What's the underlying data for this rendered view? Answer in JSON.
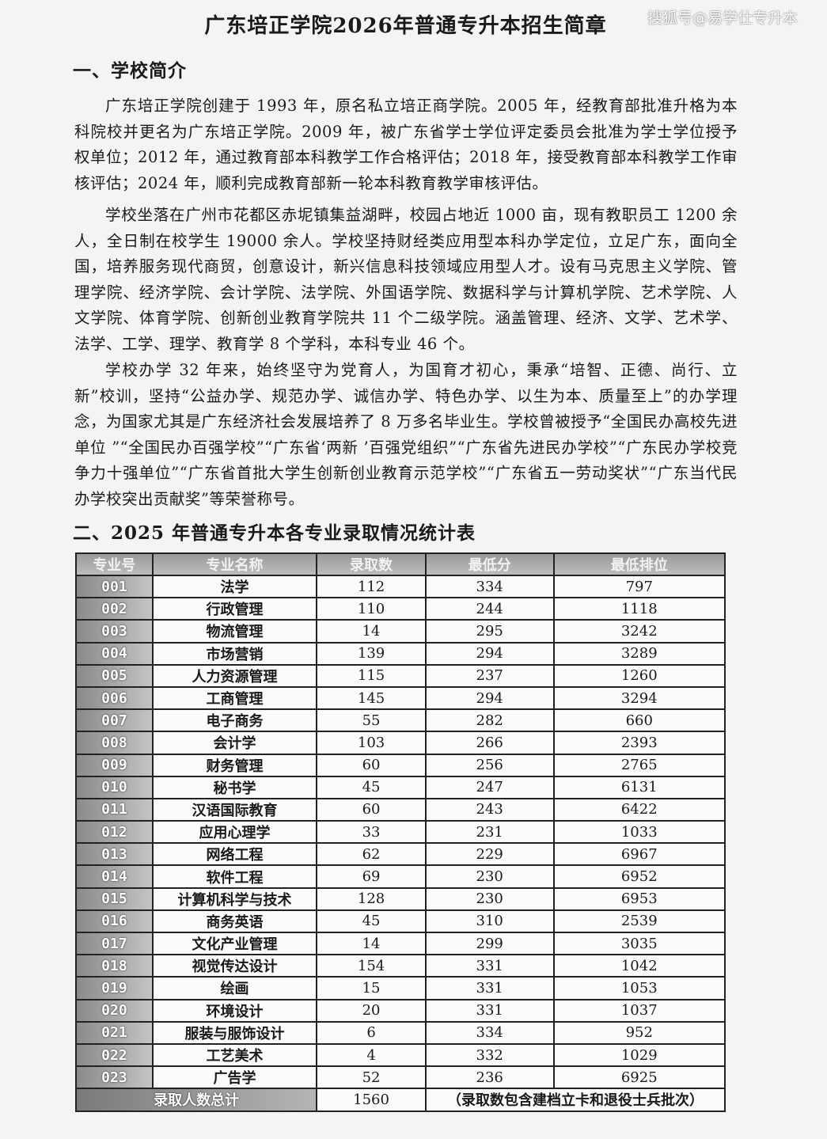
{
  "title": "广东培正学院2026年普通专升本招生简章",
  "watermark": "搜狐号@易学仕专升本",
  "section1": {
    "heading": "一、学校简介",
    "paragraphs": [
      "广东培正学院创建于 1993 年，原名私立培正商学院。2005 年，经教育部批准升格为本科院校并更名为广东培正学院。2009 年，被广东省学士学位评定委员会批准为学士学位授予权单位；2012 年，通过教育部本科教学工作合格评估；2018 年，接受教育部本科教学工作审核评估；2024 年，顺利完成教育部新一轮本科教育教学审核评估。",
      "学校坐落在广州市花都区赤坭镇集益湖畔，校园占地近 1000 亩，现有教职员工 1200 余人，全日制在校学生 19000 余人。学校坚持财经类应用型本科办学定位，立足广东，面向全国，培养服务现代商贸，创意设计，新兴信息科技领域应用型人才。设有马克思主义学院、管理学院、经济学院、会计学院、法学院、外国语学院、数据科学与计算机学院、艺术学院、人文学院、体育学院、创新创业教育学院共 11 个二级学院。涵盖管理、经济、文学、艺术学、法学、工学、理学、教育学 8 个学科，本科专业 46 个。",
      "学校办学 32 年来，始终坚守为党育人，为国育才初心，秉承“培智、正德、尚行、立新”校训，坚持“公益办学、规范办学、诚信办学、特色办学、以生为本、质量至上”的办学理念，为国家尤其是广东经济社会发展培养了 8 万多名毕业生。学校曾被授予“全国民办高校先进单位 ”“全国民办百强学校”“广东省‘两新 ’百强党组织”“广东省先进民办学校”“广东民办学校竞争力十强单位”“广东省首批大学生创新创业教育示范学校”“广东省五一劳动奖状”“广东当代民办学校突出贡献奖”等荣誉称号。"
    ]
  },
  "section2": {
    "heading": "二、2025 年普通专升本各专业录取情况统计表",
    "columns": [
      "专业号",
      "专业名称",
      "录取数",
      "最低分",
      "最低排位"
    ],
    "rows": [
      [
        "001",
        "法学",
        "112",
        "334",
        "797"
      ],
      [
        "002",
        "行政管理",
        "110",
        "244",
        "1118"
      ],
      [
        "003",
        "物流管理",
        "14",
        "295",
        "3242"
      ],
      [
        "004",
        "市场营销",
        "139",
        "294",
        "3289"
      ],
      [
        "005",
        "人力资源管理",
        "115",
        "237",
        "1260"
      ],
      [
        "006",
        "工商管理",
        "145",
        "294",
        "3294"
      ],
      [
        "007",
        "电子商务",
        "55",
        "282",
        "660"
      ],
      [
        "008",
        "会计学",
        "103",
        "266",
        "2393"
      ],
      [
        "009",
        "财务管理",
        "60",
        "256",
        "2765"
      ],
      [
        "010",
        "秘书学",
        "45",
        "247",
        "6131"
      ],
      [
        "011",
        "汉语国际教育",
        "60",
        "243",
        "6422"
      ],
      [
        "012",
        "应用心理学",
        "33",
        "231",
        "1033"
      ],
      [
        "013",
        "网络工程",
        "62",
        "229",
        "6967"
      ],
      [
        "014",
        "软件工程",
        "69",
        "230",
        "6952"
      ],
      [
        "015",
        "计算机科学与技术",
        "128",
        "230",
        "6953"
      ],
      [
        "016",
        "商务英语",
        "45",
        "310",
        "2539"
      ],
      [
        "017",
        "文化产业管理",
        "14",
        "299",
        "3035"
      ],
      [
        "018",
        "视觉传达设计",
        "154",
        "331",
        "1042"
      ],
      [
        "019",
        "绘画",
        "15",
        "331",
        "1053"
      ],
      [
        "020",
        "环境设计",
        "20",
        "331",
        "1037"
      ],
      [
        "021",
        "服装与服饰设计",
        "6",
        "334",
        "952"
      ],
      [
        "022",
        "工艺美术",
        "4",
        "332",
        "1029"
      ],
      [
        "023",
        "广告学",
        "52",
        "236",
        "6925"
      ]
    ],
    "total": {
      "label": "录取人数总计",
      "value": "1560",
      "note": "（录取数包含建档立卡和退役士兵批次）"
    }
  }
}
